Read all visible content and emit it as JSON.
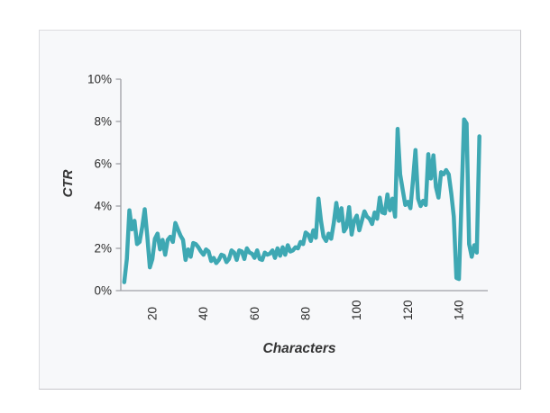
{
  "panel": {
    "background": "#f7f8fa",
    "border_color": "#cfcfd4",
    "outer_background": "#ffffff"
  },
  "axes": {
    "axis_color": "#9fa0a6",
    "tick_label_color": "#2b2b2b",
    "title_color": "#333333"
  },
  "chart_data": {
    "type": "line",
    "title": "",
    "xlabel": "Characters",
    "ylabel": "CTR",
    "xlim": [
      8,
      150
    ],
    "ylim": [
      0,
      10
    ],
    "grid": false,
    "legend": "none",
    "line_color": "#3ea8b3",
    "line_width": 4.5,
    "y_ticks": [
      {
        "value": 0,
        "label": "0%"
      },
      {
        "value": 2,
        "label": "2%"
      },
      {
        "value": 4,
        "label": "4%"
      },
      {
        "value": 6,
        "label": "6%"
      },
      {
        "value": 8,
        "label": "8%"
      },
      {
        "value": 10,
        "label": "10%"
      }
    ],
    "x_ticks": [
      {
        "value": 20,
        "label": "20"
      },
      {
        "value": 40,
        "label": "40"
      },
      {
        "value": 60,
        "label": "60"
      },
      {
        "value": 80,
        "label": "80"
      },
      {
        "value": 100,
        "label": "100"
      },
      {
        "value": 120,
        "label": "120"
      },
      {
        "value": 140,
        "label": "140"
      }
    ],
    "series": [
      {
        "name": "CTR",
        "x": [
          9,
          10,
          11,
          12,
          13,
          14,
          15,
          16,
          17,
          18,
          19,
          20,
          21,
          22,
          23,
          24,
          25,
          26,
          27,
          28,
          29,
          30,
          31,
          32,
          33,
          34,
          35,
          36,
          37,
          38,
          39,
          40,
          41,
          42,
          43,
          44,
          45,
          46,
          47,
          48,
          49,
          50,
          51,
          52,
          53,
          54,
          55,
          56,
          57,
          58,
          59,
          60,
          61,
          62,
          63,
          64,
          65,
          66,
          67,
          68,
          69,
          70,
          71,
          72,
          73,
          74,
          75,
          76,
          77,
          78,
          79,
          80,
          81,
          82,
          83,
          84,
          85,
          86,
          87,
          88,
          89,
          90,
          91,
          92,
          93,
          94,
          95,
          96,
          97,
          98,
          99,
          100,
          101,
          102,
          103,
          104,
          105,
          106,
          107,
          108,
          109,
          110,
          111,
          112,
          113,
          114,
          115,
          116,
          117,
          118,
          119,
          120,
          121,
          122,
          123,
          124,
          125,
          126,
          127,
          128,
          129,
          130,
          131,
          132,
          133,
          134,
          135,
          136,
          137,
          138,
          139,
          140,
          141,
          142,
          143,
          144,
          145,
          146,
          147,
          148
        ],
        "values": [
          0.4,
          1.5,
          3.8,
          2.9,
          3.3,
          2.2,
          2.3,
          3.0,
          3.85,
          2.6,
          1.1,
          1.5,
          2.45,
          2.7,
          1.95,
          2.4,
          1.7,
          2.4,
          2.55,
          2.3,
          3.2,
          2.9,
          2.6,
          2.4,
          1.45,
          1.95,
          1.6,
          2.25,
          2.2,
          2.05,
          1.85,
          1.7,
          1.95,
          1.85,
          1.4,
          1.55,
          1.3,
          1.45,
          1.7,
          1.65,
          1.35,
          1.5,
          1.9,
          1.8,
          1.45,
          1.9,
          1.85,
          1.5,
          2.0,
          1.8,
          1.75,
          1.55,
          1.9,
          1.5,
          1.45,
          1.8,
          1.7,
          1.75,
          1.9,
          1.55,
          2.0,
          1.65,
          2.05,
          1.7,
          2.15,
          1.85,
          1.9,
          2.05,
          2.0,
          2.3,
          2.2,
          2.75,
          2.65,
          2.35,
          2.85,
          2.5,
          4.35,
          3.3,
          2.55,
          2.35,
          2.7,
          2.45,
          3.2,
          4.15,
          3.3,
          3.9,
          2.8,
          3.0,
          3.95,
          2.65,
          3.3,
          3.55,
          2.85,
          3.3,
          3.75,
          3.5,
          3.4,
          3.15,
          3.7,
          3.4,
          4.4,
          3.7,
          3.65,
          4.55,
          3.8,
          4.35,
          3.5,
          7.65,
          5.5,
          4.75,
          4.05,
          4.2,
          3.9,
          5.2,
          6.65,
          4.35,
          4.0,
          4.25,
          4.05,
          6.45,
          5.3,
          6.4,
          4.9,
          4.4,
          5.6,
          5.5,
          5.7,
          5.5,
          4.6,
          3.5,
          0.6,
          0.55,
          4.2,
          8.1,
          7.9,
          2.2,
          1.6,
          2.15,
          1.8,
          7.3
        ]
      }
    ]
  }
}
